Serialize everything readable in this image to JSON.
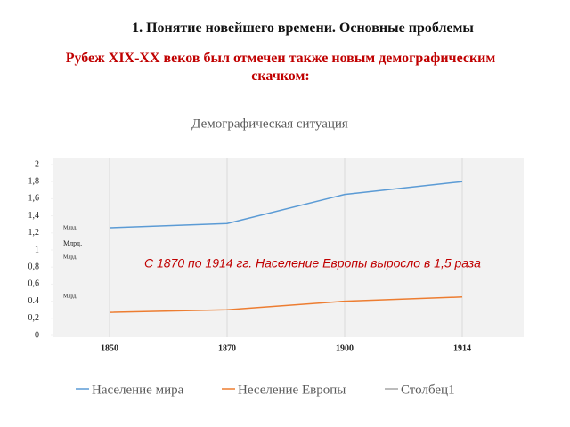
{
  "slide_title": "1. Понятие новейшего времени. Основные проблемы",
  "subtitle": "Рубеж XIX-XX веков был отмечен также новым демографическим скачком:",
  "chart_data": {
    "type": "line",
    "title": "Демографическая ситуация",
    "categories": [
      "1850",
      "1870",
      "1900",
      "1914"
    ],
    "series": [
      {
        "name": "Население мира",
        "color": "#5b9bd5",
        "values": [
          1.26,
          1.31,
          1.65,
          1.8
        ]
      },
      {
        "name": "Неселение Европы",
        "color": "#ed7d31",
        "values": [
          0.27,
          0.3,
          0.4,
          0.45
        ]
      },
      {
        "name": "Столбец1",
        "color": "#a5a5a5",
        "values": [
          null,
          null,
          null,
          null
        ]
      }
    ],
    "ylim": [
      0,
      2
    ],
    "yticks": [
      0,
      {
        "value": 0.2,
        "label": "0,2"
      },
      {
        "value": 0.4,
        "label": "0.4"
      },
      {
        "value": 0.6,
        "label": "0,6"
      },
      {
        "value": 0.8,
        "label": "0,8"
      },
      1,
      {
        "value": 1.2,
        "label": "1,2"
      },
      {
        "value": 1.4,
        "label": "1,4"
      },
      {
        "value": 1.6,
        "label": "1,6"
      },
      {
        "value": 1.8,
        "label": "1,8"
      },
      2
    ],
    "unit_labels": [
      "Млрд.",
      "Млрд.",
      "Млрд.",
      "Млрд."
    ],
    "annotation": "С 1870 по 1914 гг. Население Европы выросло в 1,5 раза",
    "legend": "bottom"
  }
}
